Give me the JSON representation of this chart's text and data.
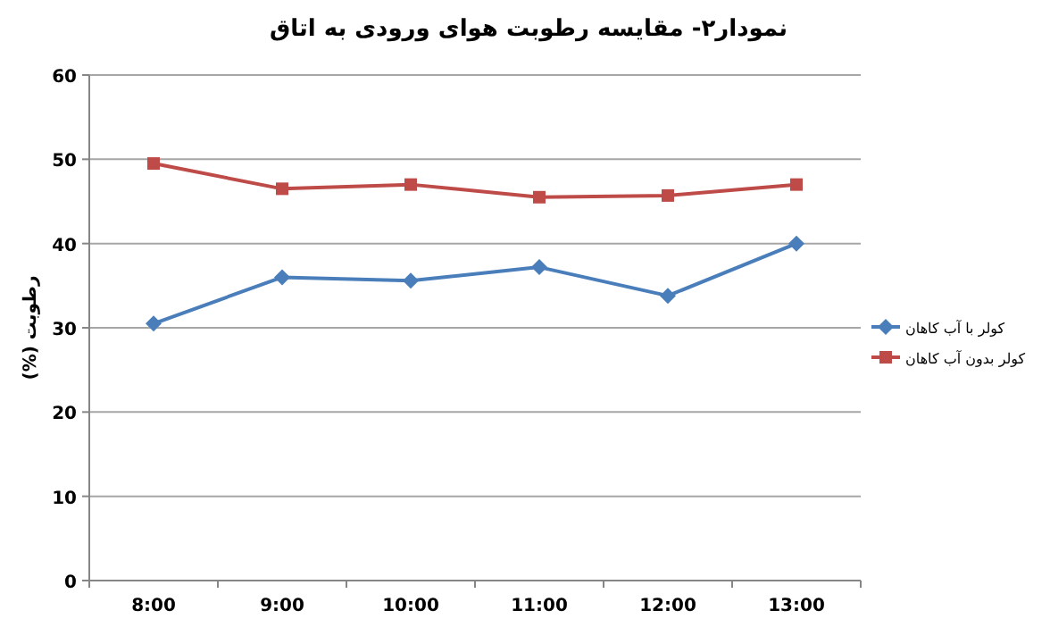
{
  "chart_data": {
    "type": "line",
    "title": "نمودار۲- مقایسه رطوبت هوای ورودی به اتاق",
    "ylabel": "رطوبت (%)",
    "categories": [
      "8:00",
      "9:00",
      "10:00",
      "11:00",
      "12:00",
      "13:00"
    ],
    "series": [
      {
        "name": "کولر با آب کاهان",
        "color": "#4a7ebb",
        "marker": "diamond",
        "values": [
          30.5,
          36,
          35.6,
          37.2,
          33.8,
          40
        ]
      },
      {
        "name": "کولر بدون آب کاهان",
        "color": "#be4b48",
        "marker": "square",
        "values": [
          49.5,
          46.5,
          47,
          45.5,
          45.7,
          47
        ]
      }
    ],
    "ylim": [
      0,
      60
    ],
    "yticks": [
      0,
      10,
      20,
      30,
      40,
      50,
      60
    ],
    "grid": "y",
    "legend": "right"
  }
}
